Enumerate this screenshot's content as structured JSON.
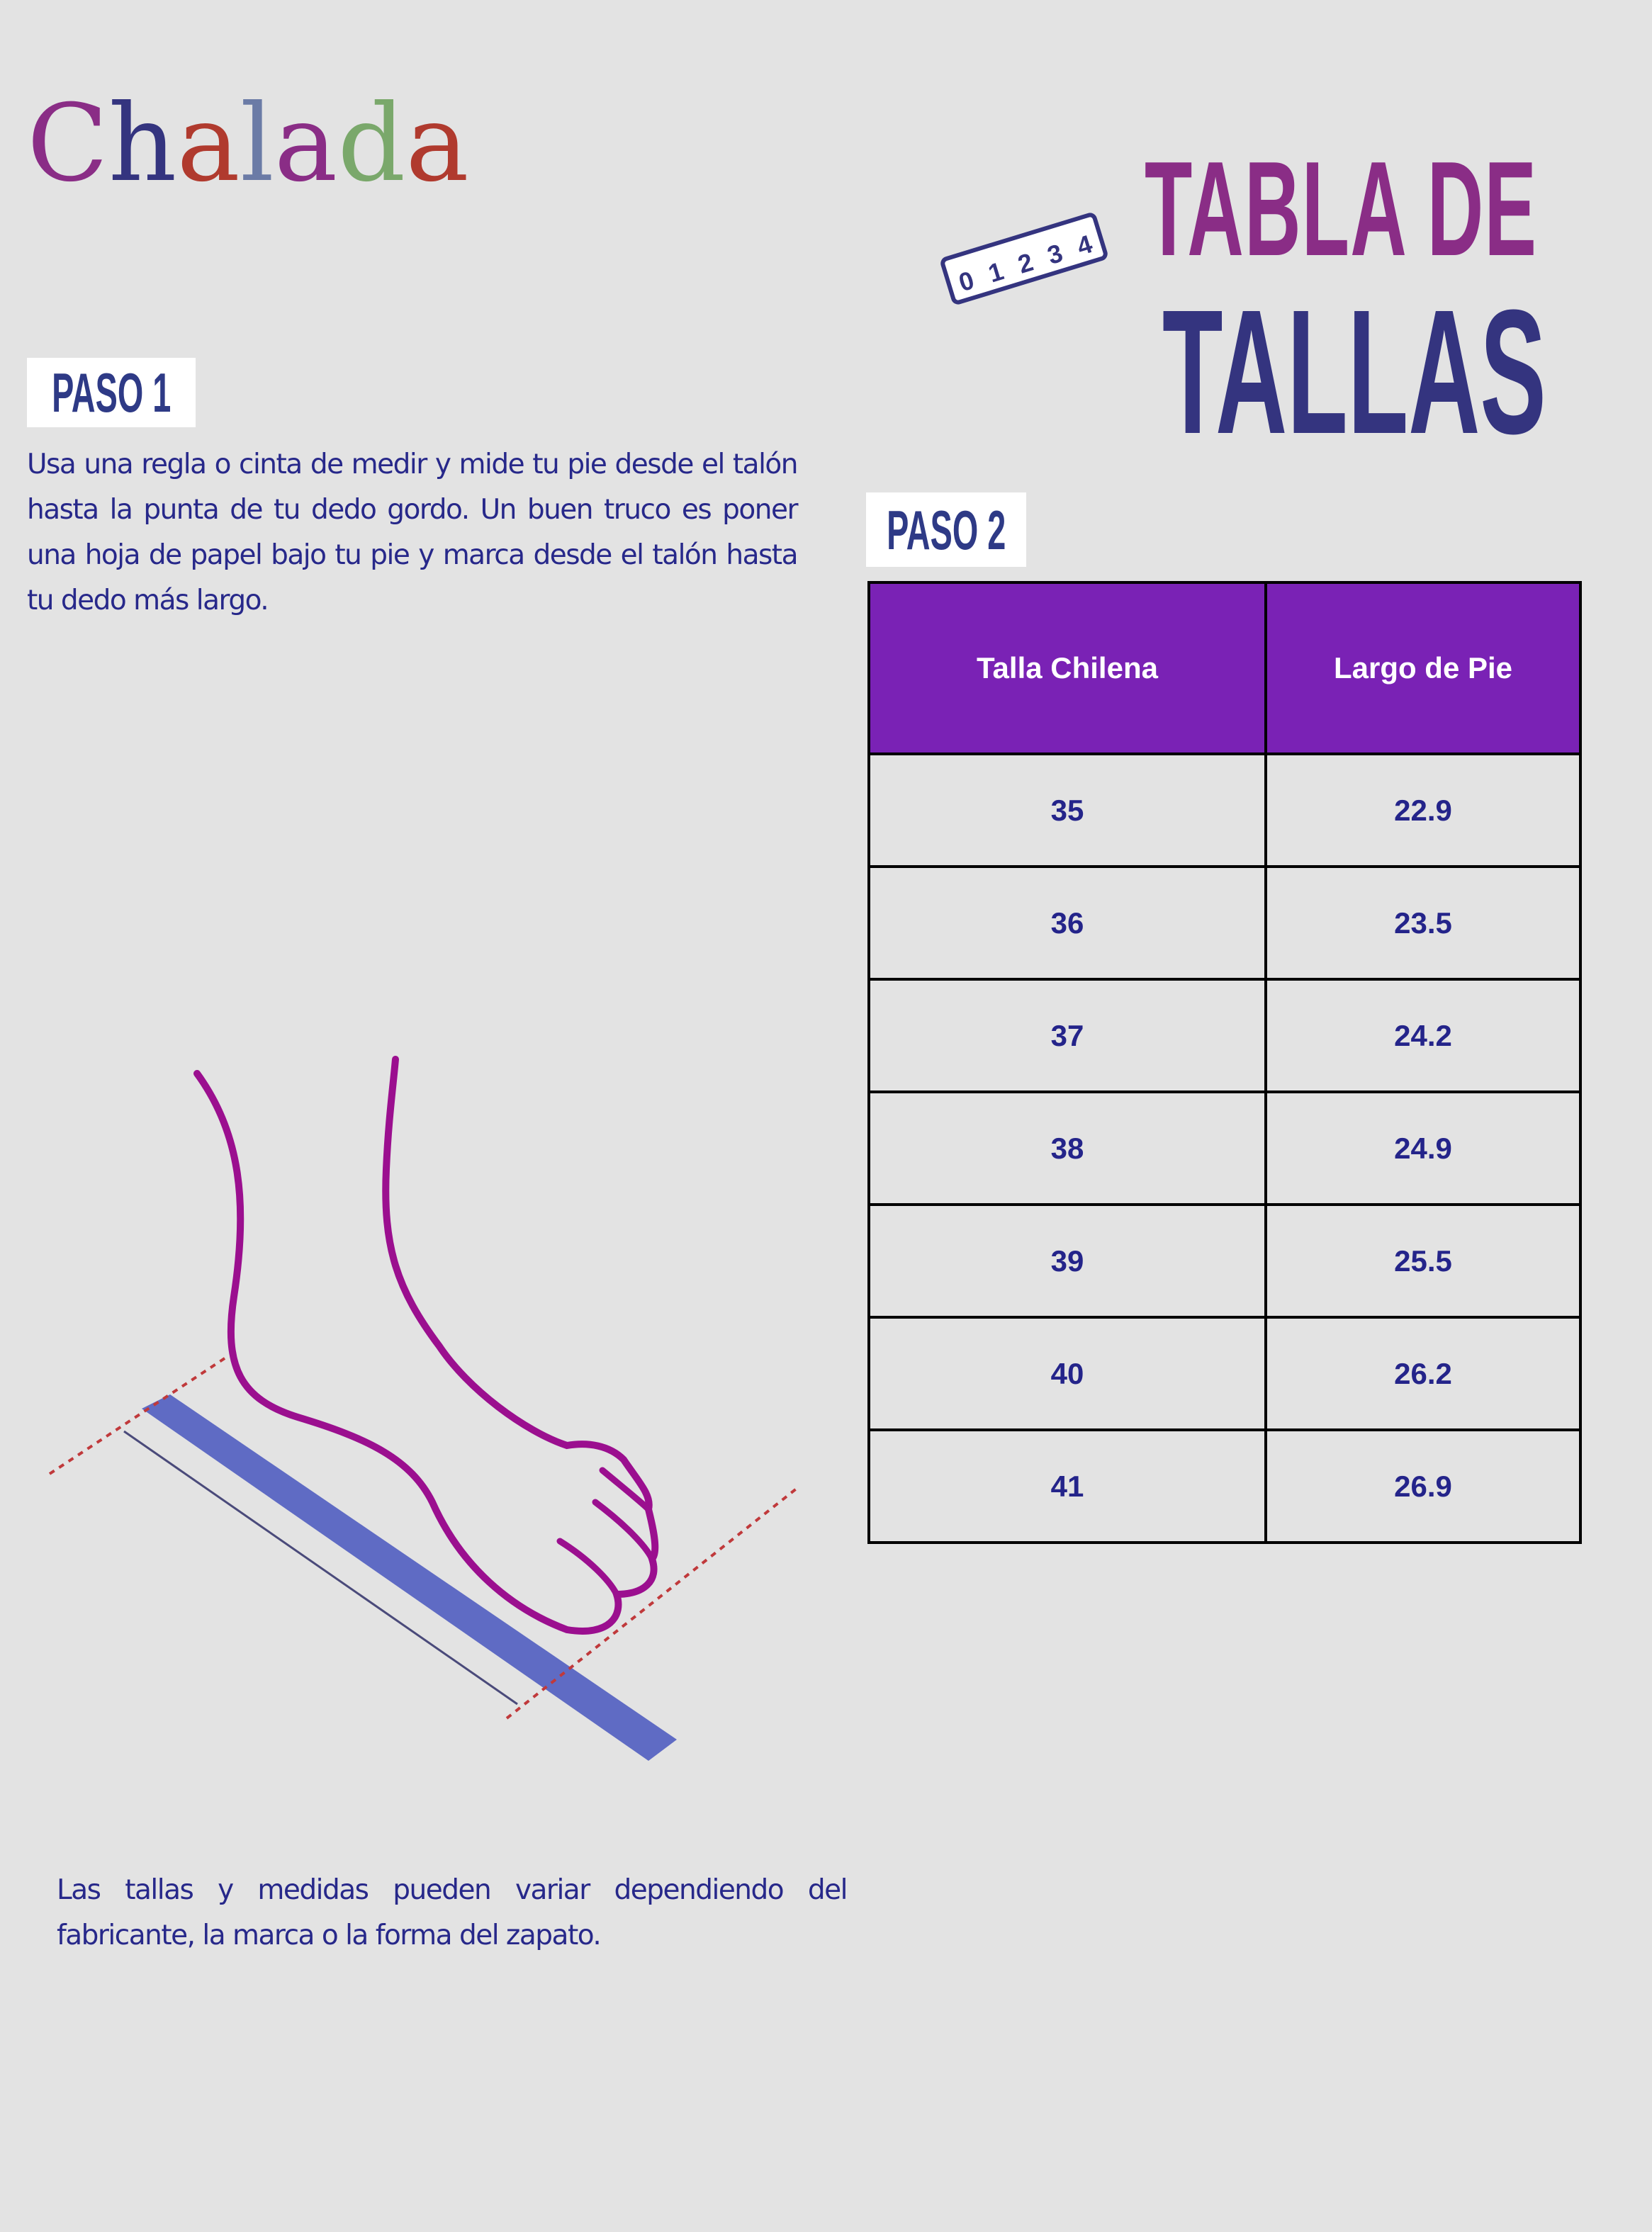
{
  "logo": {
    "text": "Chalada",
    "letters": [
      "C",
      "h",
      "a",
      "l",
      "a",
      "d",
      "a"
    ],
    "colors": [
      "#8a2d86",
      "#34347f",
      "#b03a2e",
      "#6b7ba6",
      "#8a2d86",
      "#7aa86b",
      "#b03a2e"
    ]
  },
  "title": {
    "line1": "TABLA DE",
    "line2": "TALLAS",
    "ruler_digits": [
      "0",
      "1",
      "2",
      "3",
      "4"
    ]
  },
  "step1": {
    "label": "PASO 1",
    "text": "Usa una regla o cinta de medir y mide tu pie desde el talón hasta la punta de tu dedo gordo. Un buen truco es poner una hoja de papel bajo tu pie y marca desde el talón hasta tu dedo más largo."
  },
  "step2": {
    "label": "PASO 2"
  },
  "table": {
    "headers": [
      "Talla Chilena",
      "Largo de Pie"
    ],
    "rows": [
      [
        "35",
        "22.9"
      ],
      [
        "36",
        "23.5"
      ],
      [
        "37",
        "24.2"
      ],
      [
        "38",
        "24.9"
      ],
      [
        "39",
        "25.5"
      ],
      [
        "40",
        "26.2"
      ],
      [
        "41",
        "26.9"
      ]
    ]
  },
  "note": "Las tallas y medidas pueden variar dependiendo del fabricante, la marca o la forma del zapato.",
  "colors": {
    "background": "#e3e3e3",
    "header": "#7a22b5",
    "text": "#27288a",
    "foot": "#9b0f8f",
    "ruler": "#5f6bc4"
  }
}
